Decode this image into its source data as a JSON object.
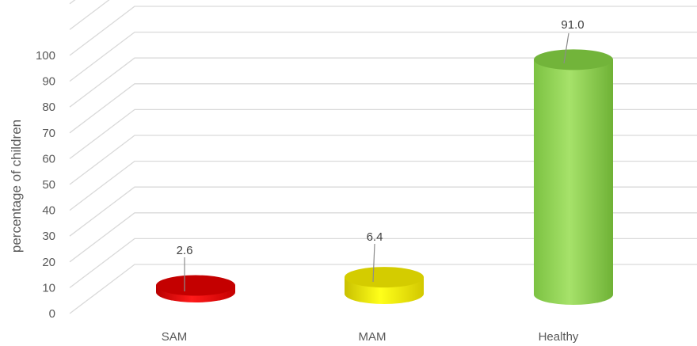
{
  "chart_data": {
    "type": "bar",
    "style": "3d-cylinder",
    "categories": [
      "SAM",
      "MAM",
      "Healthy"
    ],
    "values": [
      2.6,
      6.4,
      91.0
    ],
    "value_labels": [
      "2.6",
      "6.4",
      "91.0"
    ],
    "colors": [
      "#e00000",
      "#e8e000",
      "#8fd14f"
    ],
    "ylabel": "percentage of children",
    "xlabel": "",
    "ylim": [
      0,
      100
    ],
    "yticks": [
      0,
      10,
      20,
      30,
      40,
      50,
      60,
      70,
      80,
      90,
      100
    ],
    "grid": true
  }
}
